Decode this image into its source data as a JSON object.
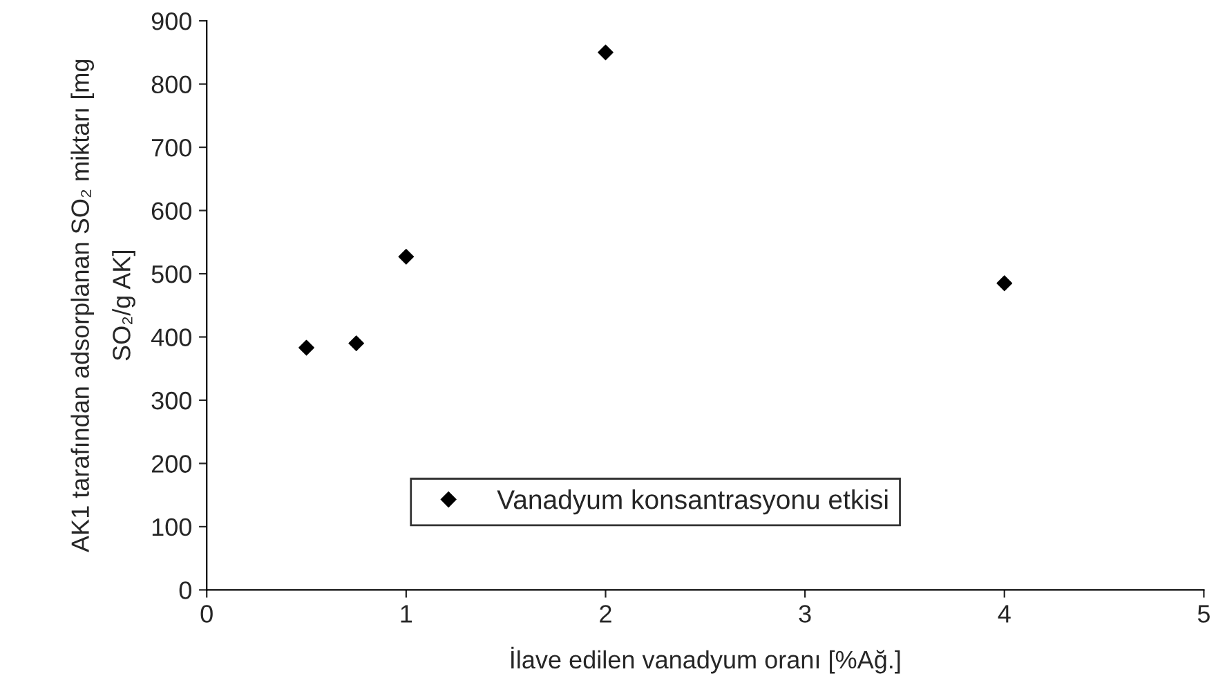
{
  "chart_data": {
    "type": "scatter",
    "xlabel": "İlave edilen vanadyum oranı [%Ağ.]",
    "ylabel": "AK1 tarafından adsorplanan SO₂ miktarı [mg\nSO₂/g AK]",
    "x": [
      0.5,
      0.75,
      1,
      2,
      4
    ],
    "series": [
      {
        "name": "Vanadyum konsantrasyonu etkisi",
        "color": "#000000",
        "values": [
          383,
          390,
          527,
          850,
          485
        ]
      }
    ],
    "xlim": [
      0,
      5
    ],
    "xticks": [
      0,
      1,
      2,
      3,
      4,
      5
    ],
    "ylim": [
      0,
      900
    ],
    "yticks": [
      0,
      100,
      200,
      300,
      400,
      500,
      600,
      700,
      800,
      900
    ],
    "marker": "diamond",
    "legend": "bottom",
    "grid": false
  }
}
